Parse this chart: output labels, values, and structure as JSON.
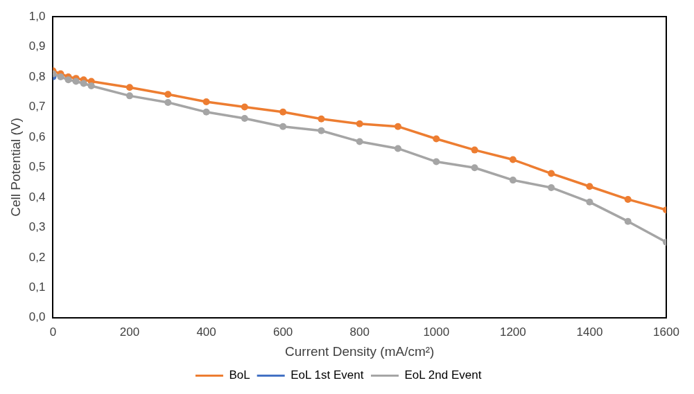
{
  "chart_data": {
    "type": "line",
    "xlabel": "Current Density (mA/cm²)",
    "ylabel": "Cell Potential (V)",
    "x": [
      0,
      20,
      40,
      60,
      80,
      100,
      200,
      300,
      400,
      500,
      600,
      700,
      800,
      900,
      1000,
      1100,
      1200,
      1300,
      1400,
      1500,
      1600
    ],
    "series": [
      {
        "name": "BoL",
        "color": "#ed7d31",
        "values": [
          0.82,
          0.81,
          0.8,
          0.795,
          0.79,
          0.785,
          0.765,
          0.742,
          0.717,
          0.7,
          0.683,
          0.66,
          0.644,
          0.635,
          0.594,
          0.557,
          0.525,
          0.479,
          0.436,
          0.393,
          0.358
        ]
      },
      {
        "name": "EoL 1st Event",
        "color": "#4472c4",
        "x": [
          0
        ],
        "values": [
          0.8
        ]
      },
      {
        "name": "EoL 2nd Event",
        "color": "#a5a5a5",
        "values": [
          0.81,
          0.8,
          0.79,
          0.785,
          0.778,
          0.77,
          0.737,
          0.715,
          0.683,
          0.662,
          0.635,
          0.621,
          0.585,
          0.562,
          0.518,
          0.498,
          0.457,
          0.432,
          0.384,
          0.32,
          0.251
        ]
      }
    ],
    "xlim": [
      0,
      1600
    ],
    "xticks": [
      0,
      200,
      400,
      600,
      800,
      1000,
      1200,
      1400,
      1600
    ],
    "ylim": [
      0,
      1
    ],
    "yticks": [
      {
        "value": 0,
        "label": "0,0"
      },
      {
        "value": 0.1,
        "label": "0,1"
      },
      {
        "value": 0.2,
        "label": "0,2"
      },
      {
        "value": 0.3,
        "label": "0,3"
      },
      {
        "value": 0.4,
        "label": "0,4"
      },
      {
        "value": 0.5,
        "label": "0,5"
      },
      {
        "value": 0.6,
        "label": "0,6"
      },
      {
        "value": 0.7,
        "label": "0,7"
      },
      {
        "value": 0.8,
        "label": "0,8"
      },
      {
        "value": 0.9,
        "label": "0,9"
      },
      {
        "value": 1,
        "label": "1,0"
      }
    ],
    "grid": false,
    "legend": "bottom",
    "marker": "circle",
    "line_style": "solid"
  }
}
